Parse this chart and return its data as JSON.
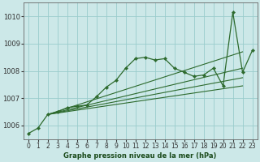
{
  "bg_color": "#cce8e8",
  "grid_color": "#99cccc",
  "line_color": "#2d6a2d",
  "xlabel": "Graphe pression niveau de la mer (hPa)",
  "ylim": [
    1005.5,
    1010.5
  ],
  "yticks": [
    1006,
    1007,
    1008,
    1009,
    1010
  ],
  "xlim": [
    -0.5,
    23.5
  ],
  "xticks": [
    0,
    1,
    2,
    3,
    4,
    5,
    6,
    7,
    8,
    9,
    10,
    11,
    12,
    13,
    14,
    15,
    16,
    17,
    18,
    19,
    20,
    21,
    22,
    23
  ],
  "main_line": {
    "x": [
      0,
      1,
      2,
      3,
      4,
      5,
      6,
      7,
      8,
      9,
      10,
      11,
      12,
      13,
      14,
      15,
      16,
      17,
      18,
      19,
      20,
      21,
      22,
      23
    ],
    "y": [
      1005.7,
      1005.9,
      1006.4,
      1006.5,
      1006.65,
      1006.7,
      1006.75,
      1007.05,
      1007.4,
      1007.65,
      1008.1,
      1008.45,
      1008.5,
      1008.4,
      1008.45,
      1008.1,
      1007.95,
      1007.8,
      1007.85,
      1008.1,
      1007.45,
      1010.15,
      1007.95,
      1008.75
    ]
  },
  "straight_lines": [
    {
      "x": [
        2,
        22
      ],
      "y": [
        1006.4,
        1007.45
      ]
    },
    {
      "x": [
        2,
        22
      ],
      "y": [
        1006.4,
        1007.75
      ]
    },
    {
      "x": [
        2,
        22
      ],
      "y": [
        1006.4,
        1008.1
      ]
    },
    {
      "x": [
        2,
        22
      ],
      "y": [
        1006.4,
        1008.7
      ]
    }
  ]
}
